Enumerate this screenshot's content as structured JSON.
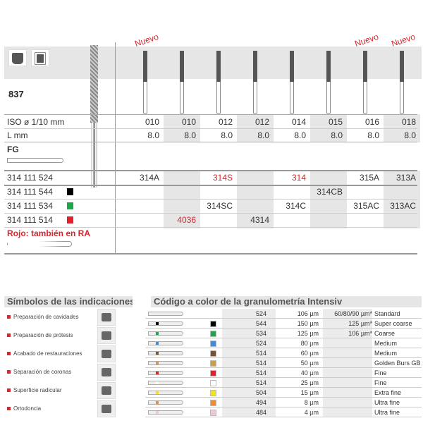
{
  "product": {
    "code": "837",
    "nuevo_label": "Nuevo",
    "nuevo_columns": [
      0,
      6,
      7
    ],
    "iso_label": "ISO ø 1/10 mm",
    "length_label": "L mm",
    "fg_label": "FG",
    "iso_values": [
      "010",
      "010",
      "012",
      "012",
      "014",
      "015",
      "016",
      "018"
    ],
    "length_values": [
      "8.0",
      "8.0",
      "8.0",
      "8.0",
      "8.0",
      "8.0",
      "8.0",
      "8.0"
    ],
    "rows": [
      {
        "ref": "314 111 524",
        "swatch": "",
        "cells": [
          "314A",
          "",
          "314S",
          "",
          "314",
          "",
          "315A",
          "313A"
        ],
        "red": [
          false,
          false,
          true,
          false,
          true,
          false,
          false,
          false
        ]
      },
      {
        "ref": "314 111 544",
        "swatch": "#000000",
        "cells": [
          "",
          "",
          "",
          "",
          "",
          "314CB",
          "",
          ""
        ],
        "red": [
          false,
          false,
          false,
          false,
          false,
          false,
          false,
          false
        ]
      },
      {
        "ref": "314 111 534",
        "swatch": "#1fa64a",
        "cells": [
          "",
          "",
          "314SC",
          "",
          "314C",
          "",
          "315AC",
          "313AC"
        ],
        "red": [
          false,
          false,
          false,
          false,
          false,
          false,
          false,
          false
        ]
      },
      {
        "ref": "314 111 514",
        "swatch": "#e2202a",
        "cells": [
          "",
          "4036",
          "",
          "4314",
          "",
          "",
          "",
          ""
        ],
        "red": [
          false,
          true,
          false,
          false,
          false,
          false,
          false,
          false
        ]
      }
    ],
    "ra_note": "Rojo: también en RA"
  },
  "indications": {
    "title": "Símbolos de las indicaciones",
    "items": [
      "Preparación de cavidades",
      "Preparación de prótesis",
      "Acabado de restauraciones",
      "Separación de coronas",
      "Superficie radicular",
      "Ortodoncia"
    ]
  },
  "grit": {
    "title": "Código a color de la granulometría Intensiv",
    "rows": [
      {
        "color": "",
        "code": "524",
        "size": "106 µm",
        "alt": "60/80/90 µm*",
        "name": "Standard"
      },
      {
        "color": "#000000",
        "code": "544",
        "size": "150 µm",
        "alt": "125 µm*",
        "name": "Super coarse"
      },
      {
        "color": "#1fa64a",
        "code": "534",
        "size": "125 µm",
        "alt": "106 µm*",
        "name": "Coarse"
      },
      {
        "color": "#3b8fd9",
        "code": "524",
        "size": "80 µm",
        "alt": "",
        "name": "Medium"
      },
      {
        "color": "#7a5230",
        "code": "514",
        "size": "60 µm",
        "alt": "",
        "name": "Medium"
      },
      {
        "color": "#c9a04a",
        "code": "514",
        "size": "50 µm",
        "alt": "",
        "name": "Golden Burs GB"
      },
      {
        "color": "#e2202a",
        "code": "514",
        "size": "40 µm",
        "alt": "",
        "name": "Fine"
      },
      {
        "color": "#ffffff",
        "code": "514",
        "size": "25 µm",
        "alt": "",
        "name": "Fine"
      },
      {
        "color": "#f5e21a",
        "code": "504",
        "size": "15 µm",
        "alt": "",
        "name": "Extra fine"
      },
      {
        "color": "#f08a3a",
        "code": "494",
        "size": "8 µm",
        "alt": "",
        "name": "Ultra fine"
      },
      {
        "color": "#f2c6d6",
        "code": "484",
        "size": "4 µm",
        "alt": "",
        "name": "Ultra fine"
      }
    ]
  }
}
